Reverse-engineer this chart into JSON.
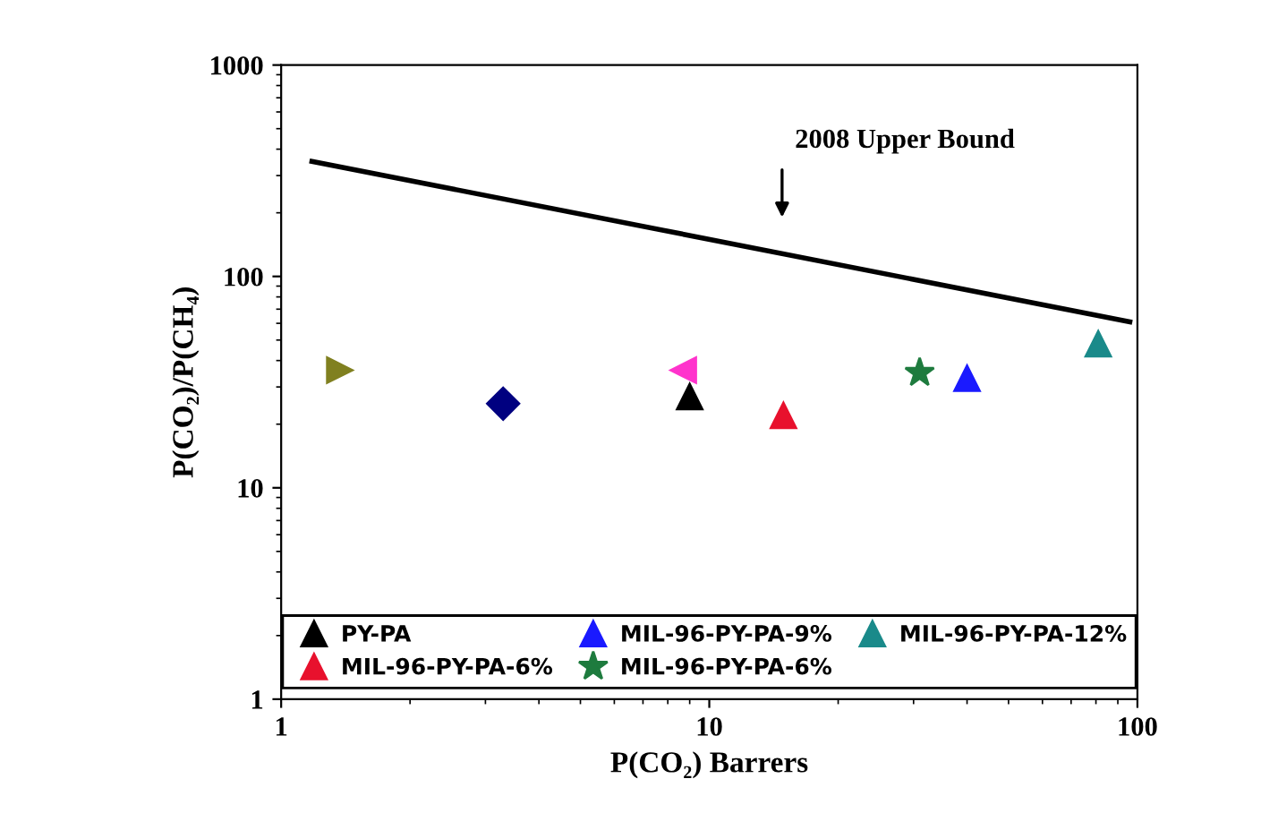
{
  "chart_data": {
    "type": "scatter",
    "xlabel": "P(CO₂) Barrers",
    "ylabel": "P(CO₂)/P(CH₄)",
    "log": "xy",
    "xlim": [
      1,
      100
    ],
    "xticks": [
      1,
      10,
      100
    ],
    "ylim": [
      1,
      1000
    ],
    "yticks": [
      1,
      10,
      100,
      1000
    ],
    "grid": false,
    "legend": "bottom",
    "annotations": [
      "2008 Upper Bound"
    ],
    "series": [
      {
        "name": "PY-PA",
        "color": "#000000",
        "marker": "triangle",
        "x": [
          9.0
        ],
        "values": [
          27
        ]
      },
      {
        "name": "MIL-96-PY-PA-6%",
        "color": "#e8112d",
        "marker": "triangle",
        "x": [
          14.9
        ],
        "values": [
          22
        ]
      },
      {
        "name": "MIL-96-PY-PA-9%",
        "color": "#1a1aff",
        "marker": "triangle",
        "x": [
          40
        ],
        "values": [
          33
        ]
      },
      {
        "color": "#ff33cc",
        "marker": "triangle-left",
        "x": [
          8.7
        ],
        "values": [
          36
        ]
      },
      {
        "color": "#808020",
        "marker": "triangle-right",
        "x": [
          1.37
        ],
        "values": [
          36
        ]
      },
      {
        "color": "#000080",
        "marker": "diamond",
        "x": [
          3.3
        ],
        "values": [
          25
        ]
      },
      {
        "name": "MIL-96-PY-PA-6%",
        "color": "#1e7b3e",
        "marker": "star",
        "x": [
          31
        ],
        "values": [
          35
        ]
      },
      {
        "name": "MIL-96-PY-PA-12%",
        "color": "#1a8a8a",
        "marker": "triangle",
        "x": [
          81
        ],
        "values": [
          48
        ]
      },
      {
        "type": "line",
        "color": "#000000",
        "marker": "none",
        "x": [
          1.18,
          96
        ],
        "values": [
          350,
          61
        ]
      }
    ]
  }
}
